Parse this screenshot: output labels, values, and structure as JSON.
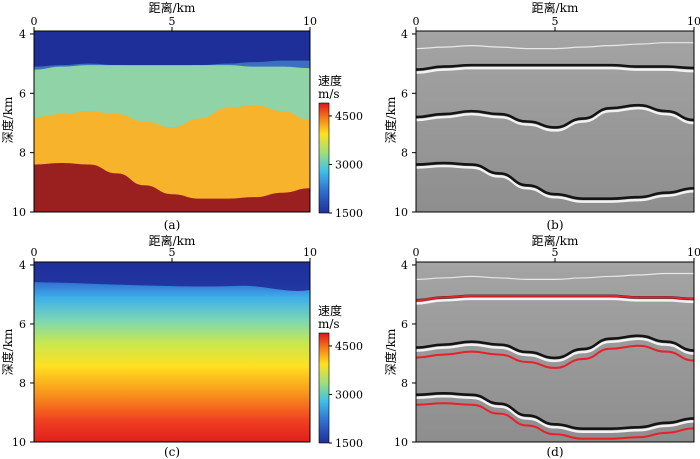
{
  "figure": {
    "x_label": "距离/km",
    "y_label": "深度/km",
    "colorbar_title_line1": "速度",
    "colorbar_title_line2": "m/s"
  },
  "colors": {
    "layer1": "#1f2f9a",
    "layer2": "#3d6fc0",
    "layer3": "#8fd3a6",
    "layer4": "#f7b32b",
    "layer5": "#9a1f1f",
    "seismic_bg": "#9a9a9a",
    "horizon_red": "#e8202a"
  },
  "chart_data": [
    {
      "panel": "(a)",
      "type": "heatmap",
      "description_label": "(a)",
      "x_ticks": [
        "0",
        "5",
        "10"
      ],
      "y_ticks": [
        "4",
        "6",
        "8",
        "10"
      ],
      "xlim": [
        0,
        10
      ],
      "ylim": [
        3.9,
        10
      ],
      "layers": [
        {
          "name": "layer1",
          "velocity": 1500
        },
        {
          "name": "layer2",
          "velocity": 2000
        },
        {
          "name": "layer3",
          "velocity": 3200
        },
        {
          "name": "layer4",
          "velocity": 4000
        },
        {
          "name": "layer5",
          "velocity": 4800
        }
      ],
      "interfaces_depth_km": [
        {
          "x": [
            0,
            1,
            2,
            3,
            4,
            5,
            6,
            7,
            8,
            9,
            10
          ],
          "depth": [
            5.1,
            5.05,
            5.0,
            5.05,
            5.1,
            5.1,
            5.05,
            5.0,
            4.95,
            4.9,
            4.9
          ]
        },
        {
          "x": [
            0,
            1,
            2,
            3,
            4,
            5,
            6,
            7,
            8,
            9,
            10
          ],
          "depth": [
            5.2,
            5.1,
            5.05,
            5.05,
            5.05,
            5.05,
            5.05,
            5.05,
            5.1,
            5.1,
            5.15
          ]
        },
        {
          "x": [
            0,
            1,
            2,
            3,
            4,
            5,
            6,
            7,
            8,
            9,
            10
          ],
          "depth": [
            6.8,
            6.7,
            6.6,
            6.7,
            6.95,
            7.15,
            6.85,
            6.5,
            6.4,
            6.6,
            6.9
          ]
        },
        {
          "x": [
            0,
            1,
            2,
            3,
            4,
            5,
            6,
            7,
            8,
            9,
            10
          ],
          "depth": [
            8.4,
            8.35,
            8.4,
            8.7,
            9.1,
            9.4,
            9.55,
            9.55,
            9.5,
            9.35,
            9.2
          ]
        }
      ]
    },
    {
      "panel": "(b)",
      "type": "heatmap",
      "description_label": "(b)",
      "x_ticks": [
        "0",
        "5",
        "10"
      ],
      "y_ticks": [
        "4",
        "6",
        "8",
        "10"
      ],
      "xlim": [
        0,
        10
      ],
      "ylim": [
        3.9,
        10
      ]
    },
    {
      "panel": "(c)",
      "type": "heatmap",
      "description_label": "(c)",
      "x_ticks": [
        "0",
        "5",
        "10"
      ],
      "y_ticks": [
        "4",
        "6",
        "8",
        "10"
      ],
      "xlim": [
        0,
        10
      ],
      "ylim": [
        3.9,
        10
      ],
      "gradient_depth_km": [
        4.0,
        5.0,
        6.0,
        7.0,
        8.0,
        9.0,
        10.0
      ],
      "gradient_velocity": [
        1500,
        1900,
        2700,
        3300,
        3900,
        4400,
        4800
      ]
    },
    {
      "panel": "(d)",
      "type": "heatmap",
      "description_label": "(d)",
      "x_ticks": [
        "0",
        "5",
        "10"
      ],
      "y_ticks": [
        "4",
        "6",
        "8",
        "10"
      ],
      "xlim": [
        0,
        10
      ],
      "ylim": [
        3.9,
        10
      ]
    }
  ],
  "colorbars": [
    {
      "ticks": [
        "4500",
        "3000",
        "1500"
      ],
      "values": [
        4500,
        3000,
        1500
      ],
      "range": [
        1500,
        4900
      ]
    },
    {
      "ticks": [
        "4500",
        "3000",
        "1500"
      ],
      "values": [
        4500,
        3000,
        1500
      ],
      "range": [
        1500,
        4900
      ]
    }
  ]
}
